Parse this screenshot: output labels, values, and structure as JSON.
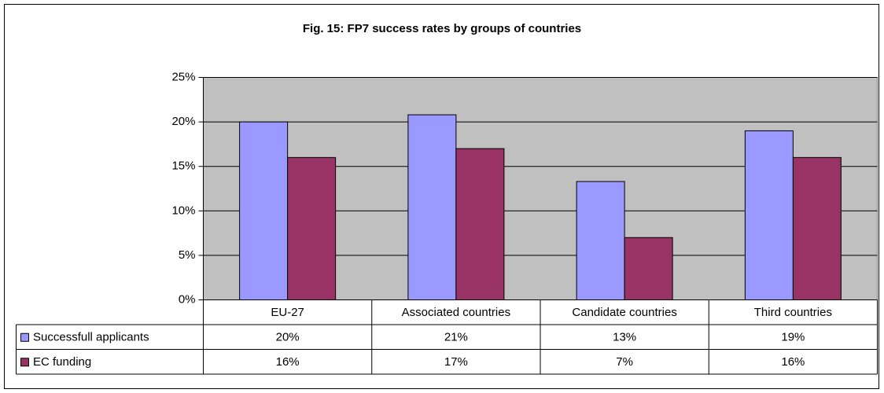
{
  "chart_data": {
    "type": "bar",
    "title": "Fig. 15: FP7 success rates by groups of countries",
    "categories": [
      "EU-27",
      "Associated countries",
      "Candidate countries",
      "Third countries"
    ],
    "series": [
      {
        "name": "Successfull applicants",
        "color": "#9999ff",
        "values": [
          20,
          20.8,
          13.3,
          19
        ],
        "value_labels": [
          "20%",
          "21%",
          "13%",
          "19%"
        ]
      },
      {
        "name": "EC funding",
        "color": "#993366",
        "values": [
          16,
          17,
          7,
          16
        ],
        "value_labels": [
          "16%",
          "17%",
          "7%",
          "16%"
        ]
      }
    ],
    "ylim": [
      0,
      25
    ],
    "yticks": [
      {
        "value": 0,
        "label": "0%"
      },
      {
        "value": 5,
        "label": "5%"
      },
      {
        "value": 10,
        "label": "10%"
      },
      {
        "value": 15,
        "label": "15%"
      },
      {
        "value": 20,
        "label": "20%"
      },
      {
        "value": 25,
        "label": "25%"
      }
    ],
    "grid": true,
    "plot_background": "#c0c0c0"
  }
}
